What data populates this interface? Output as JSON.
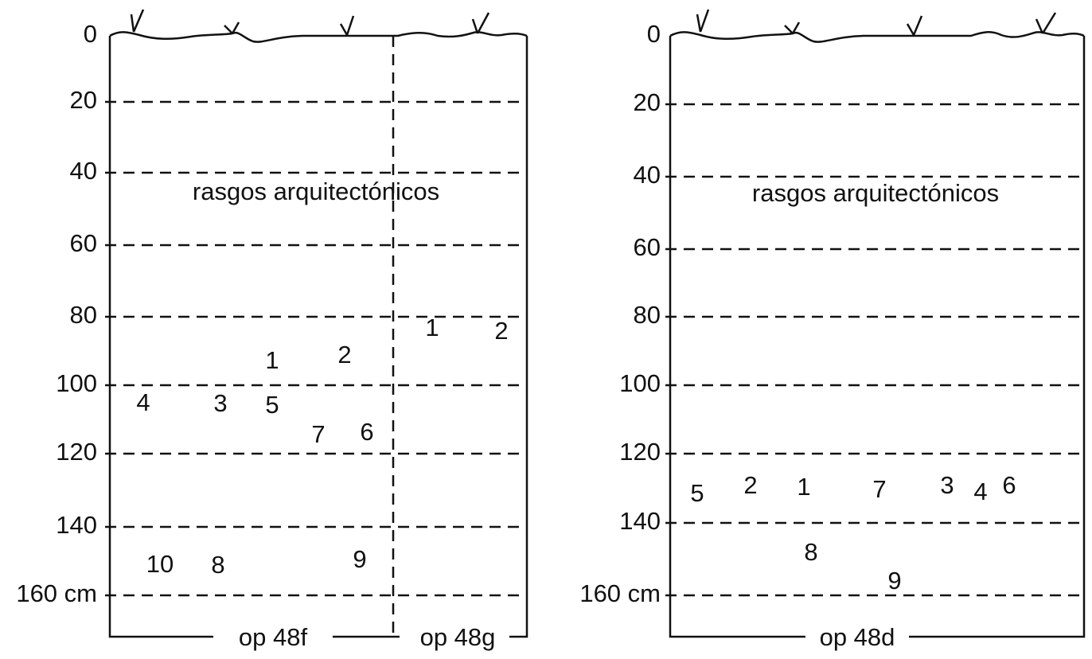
{
  "panels": [
    {
      "depth_labels": [
        "0",
        "20",
        "40",
        "60",
        "80",
        "100",
        "120",
        "140",
        "160 cm"
      ],
      "feature_label": "rasgos arquitectónicos",
      "items": [
        "1",
        "2",
        "4",
        "3",
        "5",
        "7",
        "6",
        "10",
        "8",
        "9",
        "1",
        "2"
      ],
      "sections": [
        "op 48f",
        "op 48g"
      ]
    },
    {
      "depth_labels": [
        "0",
        "20",
        "40",
        "60",
        "80",
        "100",
        "120",
        "140",
        "160 cm"
      ],
      "feature_label": "rasgos arquitectónicos",
      "items": [
        "5",
        "2",
        "1",
        "7",
        "3",
        "4",
        "6",
        "8",
        "9"
      ],
      "sections": [
        "op 48d"
      ]
    }
  ]
}
